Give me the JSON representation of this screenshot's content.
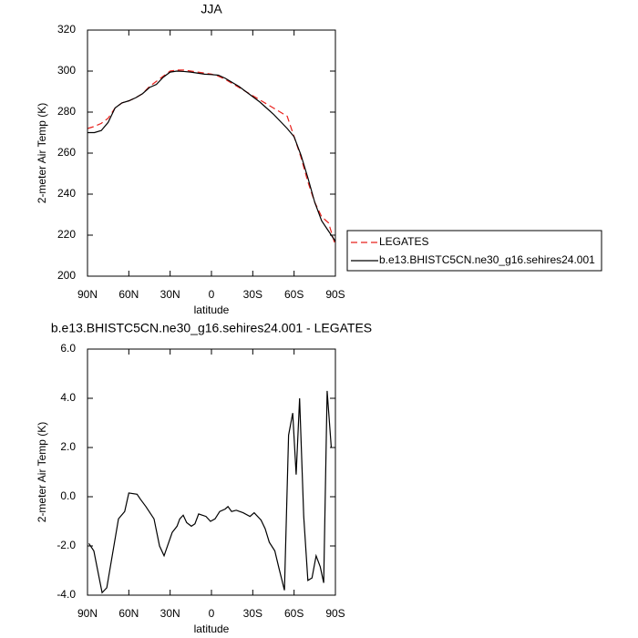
{
  "chart_data": [
    {
      "type": "line",
      "title": "JJA",
      "xlabel": "latitude",
      "ylabel": "2-meter Air Temp (K)",
      "x": [
        90,
        85,
        80,
        75,
        70,
        65,
        60,
        55,
        50,
        45,
        40,
        35,
        30,
        25,
        20,
        15,
        10,
        5,
        0,
        -5,
        -10,
        -15,
        -20,
        -25,
        -30,
        -35,
        -40,
        -45,
        -50,
        -55,
        -60,
        -65,
        -70,
        -75,
        -80,
        -85,
        -90
      ],
      "series": [
        {
          "name": "LEGATES",
          "color": "#e8211c",
          "linestyle": "dashed",
          "values": [
            272,
            273,
            274.5,
            277,
            282,
            284.5,
            285.5,
            287,
            289,
            292.5,
            295,
            297.5,
            300,
            300.5,
            300.5,
            300,
            299.5,
            299,
            298.5,
            297.5,
            296,
            294,
            292,
            290,
            288,
            286,
            284,
            282,
            280,
            278,
            268,
            258,
            246,
            236,
            229,
            226,
            215
          ]
        },
        {
          "name": "b.e13.BHISTC5CN.ne30_g16.sehires24.001",
          "color": "#000000",
          "linestyle": "solid",
          "values": [
            270,
            270,
            271,
            275,
            282,
            284.5,
            285.5,
            287,
            289,
            292,
            293.5,
            297,
            299.5,
            300,
            299.8,
            299.5,
            299,
            298.5,
            298.3,
            298,
            296.5,
            294.5,
            292.5,
            290,
            287.5,
            285,
            282,
            279,
            275.5,
            272,
            268,
            259,
            248,
            236,
            227,
            222,
            217
          ]
        }
      ],
      "xlim": [
        90,
        -90
      ],
      "xticks": [
        {
          "value": 90,
          "label": "90N"
        },
        {
          "value": 60,
          "label": "60N"
        },
        {
          "value": 30,
          "label": "30N"
        },
        0,
        {
          "value": -30,
          "label": "30S"
        },
        {
          "value": -60,
          "label": "60S"
        },
        {
          "value": -90,
          "label": "90S"
        }
      ],
      "ylim": [
        200,
        320
      ],
      "yticks": [
        200,
        220,
        240,
        260,
        280,
        300,
        320
      ],
      "legend_position": "right"
    },
    {
      "type": "line",
      "title": "b.e13.BHISTC5CN.ne30_g16.sehires24.001 - LEGATES",
      "xlabel": "latitude",
      "ylabel": "2-meter Air Temp (K)",
      "x": [
        89,
        85.4,
        79.4,
        76,
        67.5,
        63,
        60,
        54,
        51.6,
        47.6,
        41.7,
        37.7,
        34.4,
        28.5,
        25,
        23,
        20.5,
        18,
        14.6,
        12,
        9.3,
        4,
        0.7,
        -2.6,
        -6,
        -10,
        -12,
        -14.6,
        -18,
        -23,
        -28,
        -31,
        -36,
        -39,
        -42,
        -46,
        -49,
        -53,
        -56,
        -59,
        -61.5,
        -64,
        -67,
        -70,
        -73,
        -76,
        -79,
        -81.5,
        -84,
        -87
      ],
      "values": [
        -1.9,
        -2.2,
        -3.9,
        -3.7,
        -0.9,
        -0.6,
        0.15,
        0.1,
        -0.1,
        -0.4,
        -0.9,
        -2.0,
        -2.4,
        -1.45,
        -1.2,
        -0.9,
        -0.75,
        -1.05,
        -1.2,
        -1.1,
        -0.7,
        -0.8,
        -1.0,
        -0.9,
        -0.6,
        -0.5,
        -0.4,
        -0.6,
        -0.55,
        -0.65,
        -0.8,
        -0.65,
        -0.95,
        -1.3,
        -1.85,
        -2.2,
        -2.9,
        -3.8,
        2.5,
        3.4,
        0.9,
        4.0,
        -0.8,
        -3.4,
        -3.3,
        -2.4,
        -2.85,
        -3.5,
        4.3,
        2.0
      ],
      "color": "#000000",
      "xlim": [
        90,
        -90
      ],
      "xticks": [
        {
          "value": 90,
          "label": "90N"
        },
        {
          "value": 60,
          "label": "60N"
        },
        {
          "value": 30,
          "label": "30N"
        },
        0,
        {
          "value": -30,
          "label": "30S"
        },
        {
          "value": -60,
          "label": "60S"
        },
        {
          "value": -90,
          "label": "90S"
        }
      ],
      "ylim": [
        -4,
        6
      ],
      "yticks": [
        {
          "value": -4,
          "label": "-4.0"
        },
        {
          "value": -2,
          "label": "-2.0"
        },
        {
          "value": 0,
          "label": "0.0"
        },
        {
          "value": 2,
          "label": "2.0"
        },
        {
          "value": 4,
          "label": "4.0"
        },
        {
          "value": 6,
          "label": "6.0"
        }
      ]
    }
  ]
}
